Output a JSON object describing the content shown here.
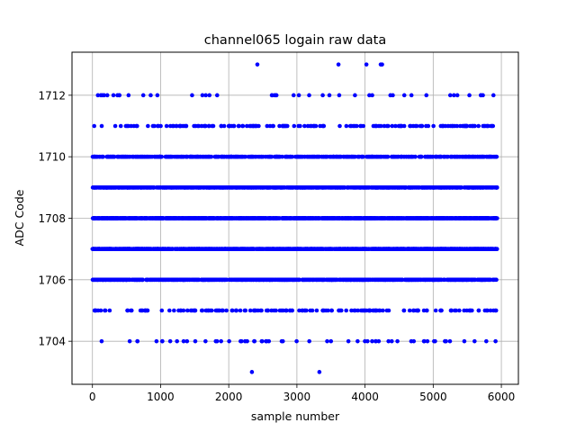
{
  "chart_data": {
    "type": "scatter",
    "title": "channel065 logain raw data",
    "xlabel": "sample number",
    "ylabel": "ADC Code",
    "xlim": [
      -300,
      6250
    ],
    "ylim": [
      1702.6,
      1713.4
    ],
    "xticks": [
      0,
      1000,
      2000,
      3000,
      4000,
      5000,
      6000
    ],
    "yticks": [
      1704,
      1706,
      1708,
      1710,
      1712
    ],
    "grid": true,
    "marker_color": "#0000ff",
    "n_samples": 5940,
    "levels": [
      {
        "value": 1703,
        "count": 2,
        "sample_x": [
          2340,
          3330
        ]
      },
      {
        "value": 1704,
        "count": 60
      },
      {
        "value": 1705,
        "count": 170
      },
      {
        "value": 1706,
        "count": 880
      },
      {
        "value": 1707,
        "count": 1430
      },
      {
        "value": 1708,
        "count": 1560
      },
      {
        "value": 1709,
        "count": 1050
      },
      {
        "value": 1710,
        "count": 560
      },
      {
        "value": 1711,
        "count": 170
      },
      {
        "value": 1712,
        "count": 45
      },
      {
        "value": 1713,
        "count": 5,
        "sample_x": [
          2420,
          3610,
          4020,
          4230,
          4250
        ]
      }
    ]
  }
}
